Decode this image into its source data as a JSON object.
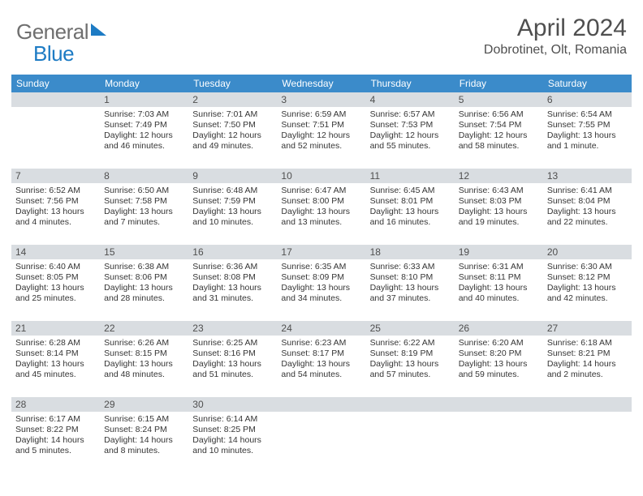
{
  "logo": {
    "part1": "General",
    "part2": "Blue"
  },
  "title": "April 2024",
  "location": "Dobrotinet, Olt, Romania",
  "colors": {
    "header_bg": "#3b8bca",
    "header_fg": "#ffffff",
    "daybar_bg": "#d9dde1",
    "text": "#353535",
    "logo_gray": "#6f6f6f",
    "logo_blue": "#1d7bc4"
  },
  "typography": {
    "title_fontsize": 30,
    "location_fontsize": 16,
    "dayheader_fontsize": 12,
    "cell_fontsize": 10.5
  },
  "dayHeaders": [
    "Sunday",
    "Monday",
    "Tuesday",
    "Wednesday",
    "Thursday",
    "Friday",
    "Saturday"
  ],
  "weeks": [
    [
      {
        "day": "",
        "l1": "",
        "l2": "",
        "l3": "",
        "l4": ""
      },
      {
        "day": "1",
        "l1": "Sunrise: 7:03 AM",
        "l2": "Sunset: 7:49 PM",
        "l3": "Daylight: 12 hours",
        "l4": "and 46 minutes."
      },
      {
        "day": "2",
        "l1": "Sunrise: 7:01 AM",
        "l2": "Sunset: 7:50 PM",
        "l3": "Daylight: 12 hours",
        "l4": "and 49 minutes."
      },
      {
        "day": "3",
        "l1": "Sunrise: 6:59 AM",
        "l2": "Sunset: 7:51 PM",
        "l3": "Daylight: 12 hours",
        "l4": "and 52 minutes."
      },
      {
        "day": "4",
        "l1": "Sunrise: 6:57 AM",
        "l2": "Sunset: 7:53 PM",
        "l3": "Daylight: 12 hours",
        "l4": "and 55 minutes."
      },
      {
        "day": "5",
        "l1": "Sunrise: 6:56 AM",
        "l2": "Sunset: 7:54 PM",
        "l3": "Daylight: 12 hours",
        "l4": "and 58 minutes."
      },
      {
        "day": "6",
        "l1": "Sunrise: 6:54 AM",
        "l2": "Sunset: 7:55 PM",
        "l3": "Daylight: 13 hours",
        "l4": "and 1 minute."
      }
    ],
    [
      {
        "day": "7",
        "l1": "Sunrise: 6:52 AM",
        "l2": "Sunset: 7:56 PM",
        "l3": "Daylight: 13 hours",
        "l4": "and 4 minutes."
      },
      {
        "day": "8",
        "l1": "Sunrise: 6:50 AM",
        "l2": "Sunset: 7:58 PM",
        "l3": "Daylight: 13 hours",
        "l4": "and 7 minutes."
      },
      {
        "day": "9",
        "l1": "Sunrise: 6:48 AM",
        "l2": "Sunset: 7:59 PM",
        "l3": "Daylight: 13 hours",
        "l4": "and 10 minutes."
      },
      {
        "day": "10",
        "l1": "Sunrise: 6:47 AM",
        "l2": "Sunset: 8:00 PM",
        "l3": "Daylight: 13 hours",
        "l4": "and 13 minutes."
      },
      {
        "day": "11",
        "l1": "Sunrise: 6:45 AM",
        "l2": "Sunset: 8:01 PM",
        "l3": "Daylight: 13 hours",
        "l4": "and 16 minutes."
      },
      {
        "day": "12",
        "l1": "Sunrise: 6:43 AM",
        "l2": "Sunset: 8:03 PM",
        "l3": "Daylight: 13 hours",
        "l4": "and 19 minutes."
      },
      {
        "day": "13",
        "l1": "Sunrise: 6:41 AM",
        "l2": "Sunset: 8:04 PM",
        "l3": "Daylight: 13 hours",
        "l4": "and 22 minutes."
      }
    ],
    [
      {
        "day": "14",
        "l1": "Sunrise: 6:40 AM",
        "l2": "Sunset: 8:05 PM",
        "l3": "Daylight: 13 hours",
        "l4": "and 25 minutes."
      },
      {
        "day": "15",
        "l1": "Sunrise: 6:38 AM",
        "l2": "Sunset: 8:06 PM",
        "l3": "Daylight: 13 hours",
        "l4": "and 28 minutes."
      },
      {
        "day": "16",
        "l1": "Sunrise: 6:36 AM",
        "l2": "Sunset: 8:08 PM",
        "l3": "Daylight: 13 hours",
        "l4": "and 31 minutes."
      },
      {
        "day": "17",
        "l1": "Sunrise: 6:35 AM",
        "l2": "Sunset: 8:09 PM",
        "l3": "Daylight: 13 hours",
        "l4": "and 34 minutes."
      },
      {
        "day": "18",
        "l1": "Sunrise: 6:33 AM",
        "l2": "Sunset: 8:10 PM",
        "l3": "Daylight: 13 hours",
        "l4": "and 37 minutes."
      },
      {
        "day": "19",
        "l1": "Sunrise: 6:31 AM",
        "l2": "Sunset: 8:11 PM",
        "l3": "Daylight: 13 hours",
        "l4": "and 40 minutes."
      },
      {
        "day": "20",
        "l1": "Sunrise: 6:30 AM",
        "l2": "Sunset: 8:12 PM",
        "l3": "Daylight: 13 hours",
        "l4": "and 42 minutes."
      }
    ],
    [
      {
        "day": "21",
        "l1": "Sunrise: 6:28 AM",
        "l2": "Sunset: 8:14 PM",
        "l3": "Daylight: 13 hours",
        "l4": "and 45 minutes."
      },
      {
        "day": "22",
        "l1": "Sunrise: 6:26 AM",
        "l2": "Sunset: 8:15 PM",
        "l3": "Daylight: 13 hours",
        "l4": "and 48 minutes."
      },
      {
        "day": "23",
        "l1": "Sunrise: 6:25 AM",
        "l2": "Sunset: 8:16 PM",
        "l3": "Daylight: 13 hours",
        "l4": "and 51 minutes."
      },
      {
        "day": "24",
        "l1": "Sunrise: 6:23 AM",
        "l2": "Sunset: 8:17 PM",
        "l3": "Daylight: 13 hours",
        "l4": "and 54 minutes."
      },
      {
        "day": "25",
        "l1": "Sunrise: 6:22 AM",
        "l2": "Sunset: 8:19 PM",
        "l3": "Daylight: 13 hours",
        "l4": "and 57 minutes."
      },
      {
        "day": "26",
        "l1": "Sunrise: 6:20 AM",
        "l2": "Sunset: 8:20 PM",
        "l3": "Daylight: 13 hours",
        "l4": "and 59 minutes."
      },
      {
        "day": "27",
        "l1": "Sunrise: 6:18 AM",
        "l2": "Sunset: 8:21 PM",
        "l3": "Daylight: 14 hours",
        "l4": "and 2 minutes."
      }
    ],
    [
      {
        "day": "28",
        "l1": "Sunrise: 6:17 AM",
        "l2": "Sunset: 8:22 PM",
        "l3": "Daylight: 14 hours",
        "l4": "and 5 minutes."
      },
      {
        "day": "29",
        "l1": "Sunrise: 6:15 AM",
        "l2": "Sunset: 8:24 PM",
        "l3": "Daylight: 14 hours",
        "l4": "and 8 minutes."
      },
      {
        "day": "30",
        "l1": "Sunrise: 6:14 AM",
        "l2": "Sunset: 8:25 PM",
        "l3": "Daylight: 14 hours",
        "l4": "and 10 minutes."
      },
      {
        "day": "",
        "l1": "",
        "l2": "",
        "l3": "",
        "l4": ""
      },
      {
        "day": "",
        "l1": "",
        "l2": "",
        "l3": "",
        "l4": ""
      },
      {
        "day": "",
        "l1": "",
        "l2": "",
        "l3": "",
        "l4": ""
      },
      {
        "day": "",
        "l1": "",
        "l2": "",
        "l3": "",
        "l4": ""
      }
    ]
  ]
}
